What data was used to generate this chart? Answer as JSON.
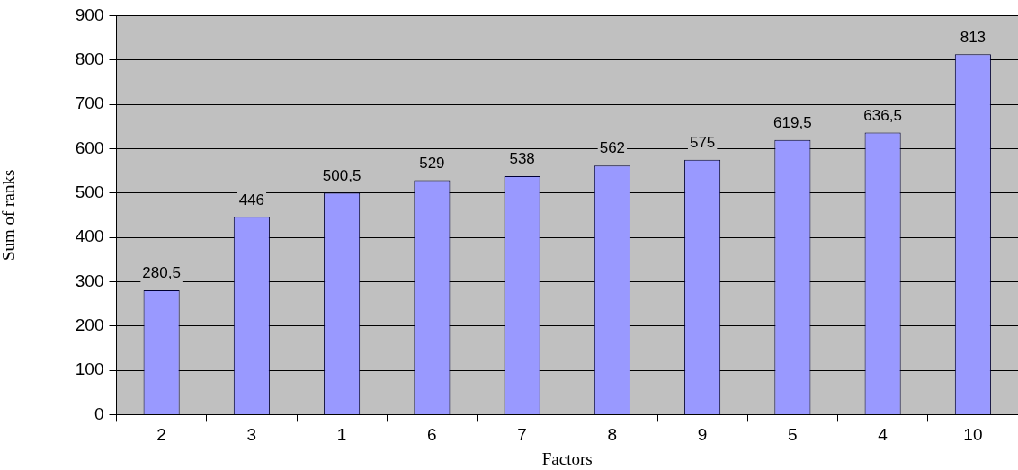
{
  "chart_data": {
    "type": "bar",
    "xlabel": "Factors",
    "ylabel": "Sum of ranks",
    "categories": [
      "2",
      "3",
      "1",
      "6",
      "7",
      "8",
      "9",
      "5",
      "4",
      "10"
    ],
    "values": [
      280.5,
      446,
      500.5,
      529,
      538,
      562,
      575,
      619.5,
      636.5,
      813
    ],
    "value_labels": [
      "280,5",
      "446",
      "500,5",
      "529",
      "538",
      "562",
      "575",
      "619,5",
      "636,5",
      "813"
    ],
    "color": "#9999ff",
    "ylim": [
      0,
      900
    ],
    "yticks": [
      0,
      100,
      200,
      300,
      400,
      500,
      600,
      700,
      800,
      900
    ],
    "grid": "y",
    "legend": false
  }
}
